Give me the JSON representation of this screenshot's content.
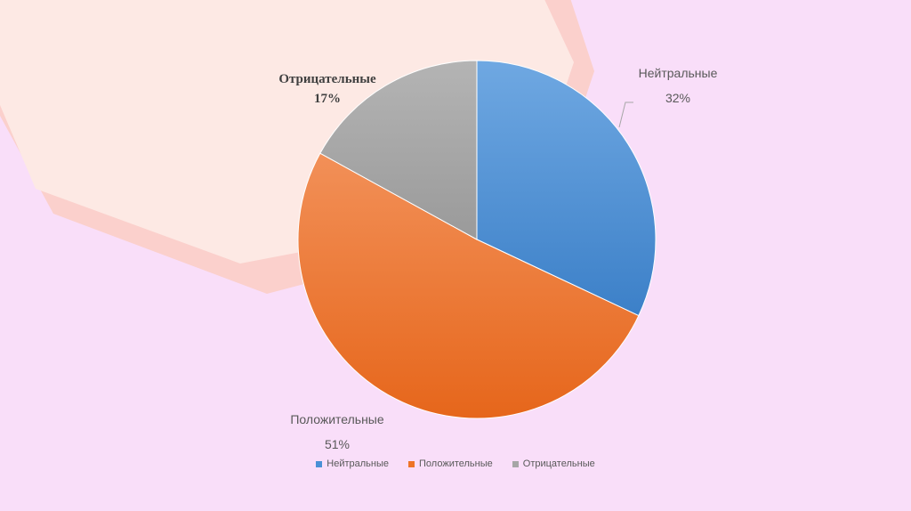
{
  "chart_data": {
    "type": "pie",
    "title": "",
    "categories": [
      "Нейтральные",
      "Положительные",
      "Отрицательные"
    ],
    "values": [
      32,
      51,
      17
    ],
    "value_labels": [
      "32%",
      "51%",
      "17%"
    ],
    "colors": [
      "#4a90d6",
      "#ee7427",
      "#a6a6a6"
    ],
    "legend": "bottom",
    "start_angle_deg": 0,
    "direction": "clockwise"
  }
}
